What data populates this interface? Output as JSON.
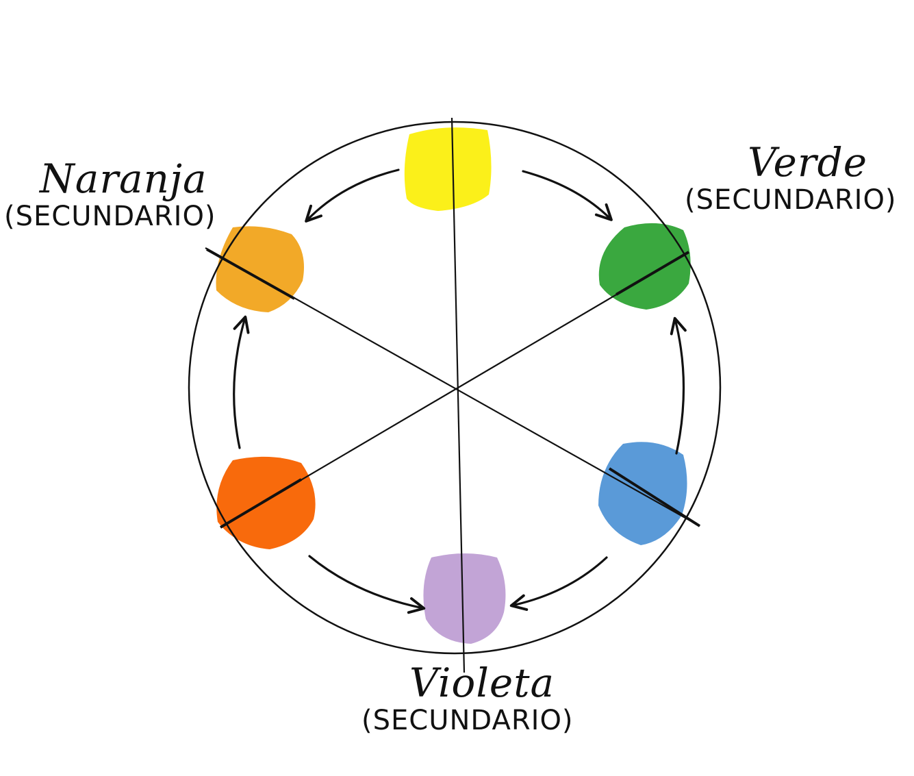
{
  "labels": {
    "orange": {
      "name": "Naranja",
      "kind": "(SECUNDARIO)"
    },
    "green": {
      "name": "Verde",
      "kind": "(SECUNDARIO)"
    },
    "violet": {
      "name": "Violeta",
      "kind": "(SECUNDARIO)"
    }
  },
  "swatch_colors": {
    "yellow": "#fbf01a",
    "light_orange": "#f2a928",
    "green": "#3aa83f",
    "blue": "#5a9ad8",
    "violet": "#c2a4d6",
    "red_orange": "#f86a0c"
  },
  "ink_color": "#111111"
}
